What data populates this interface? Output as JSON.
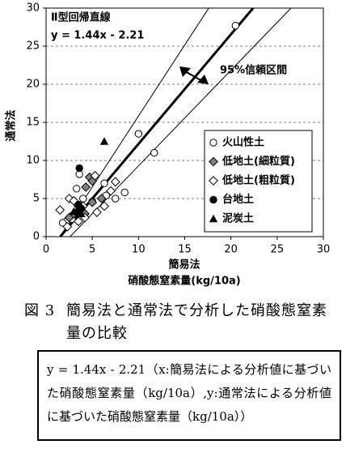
{
  "chart_data": {
    "type": "scatter",
    "title": "Ⅱ型回帰直線",
    "equation": "y = 1.44x - 2.21",
    "annotation": "95%信頼区間",
    "x_label": "簡易法",
    "x_label_2": "硝酸態窒素量(kg/10a)",
    "y_label": "通常法",
    "xlim": [
      0,
      30
    ],
    "ylim": [
      0,
      30
    ],
    "xticks": [
      0,
      5,
      10,
      15,
      20,
      25,
      30
    ],
    "yticks": [
      0,
      5,
      10,
      15,
      20,
      25,
      30
    ],
    "grid": true,
    "legend": "lower right",
    "series": [
      {
        "name": "火山性土",
        "marker": "circle-open",
        "color": "#000000",
        "x": [
          20.5,
          10,
          11.7,
          3.6,
          3.3,
          6.3,
          6.5,
          8.5,
          7.5,
          5,
          4,
          2.2,
          2.8,
          1.8
        ],
        "values": [
          27.7,
          13.5,
          11,
          8.2,
          6.3,
          7,
          5.4,
          5.8,
          5,
          4.6,
          5,
          2,
          2.3,
          1.8
        ]
      },
      {
        "name": "低地土(細粒質)",
        "marker": "diamond",
        "color": "#808080",
        "x": [
          4.7,
          5,
          4.3,
          3.5,
          3.8,
          5,
          6,
          4.2,
          3,
          2.5
        ],
        "values": [
          7.8,
          7.3,
          6.5,
          4,
          3.5,
          4.5,
          5,
          3,
          3,
          2.5
        ]
      },
      {
        "name": "低地土(粗粒質)",
        "marker": "diamond-open",
        "color": "#000000",
        "x": [
          5.3,
          7.5,
          7,
          2.5,
          3,
          5.5,
          6.3,
          3.5,
          4.2,
          2.3,
          1.5,
          4
        ],
        "values": [
          8,
          7.2,
          6,
          5,
          4.7,
          3.2,
          4,
          2,
          2.5,
          1.3,
          3.5,
          4
        ]
      },
      {
        "name": "台地土",
        "marker": "circle",
        "color": "#000000",
        "x": [
          3.6,
          3.8,
          3.3,
          3.5
        ],
        "values": [
          9,
          3.7,
          3.2,
          4.2
        ]
      },
      {
        "name": "泥炭土",
        "marker": "triangle",
        "color": "#000000",
        "x": [
          6.3,
          3,
          3.8
        ],
        "values": [
          12.5,
          3.3,
          3
        ]
      }
    ],
    "lines": [
      {
        "x": [
          1.53,
          22.4
        ],
        "values": [
          0,
          30
        ],
        "width": 3
      },
      {
        "x": [
          1.5,
          17.6
        ],
        "values": [
          0,
          30
        ],
        "width": 1
      },
      {
        "x": [
          2.6,
          26.5
        ],
        "values": [
          0,
          30
        ],
        "width": 1
      }
    ]
  },
  "caption": {
    "label": "図 3",
    "text": "簡易法と通常法で分析した硝酸態窒素量の比較"
  },
  "note": "y = 1.44x - 2.21（x:簡易法による分析値に基づいた硝酸態窒素量（kg/10a）,y:通常法による分析値に基づいた硝酸態窒素量（kg/10a））"
}
